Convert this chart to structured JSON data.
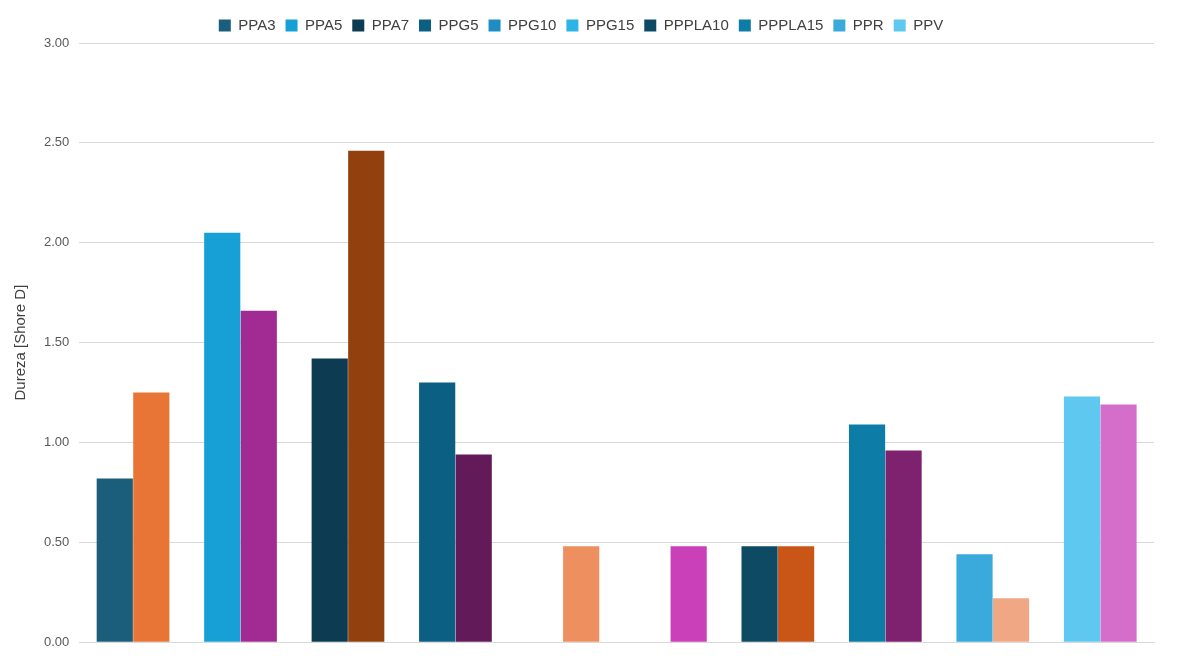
{
  "chart_data": {
    "type": "bar",
    "ylabel": "Dureza [Shore D]",
    "categories": [
      null,
      null,
      null,
      null,
      null,
      null,
      null,
      null,
      null,
      null
    ],
    "series": [
      {
        "name": "PPA3",
        "color": "#1b5e7b",
        "values": [
          0.82,
          null,
          null,
          null,
          null,
          null,
          null,
          null,
          null,
          null
        ]
      },
      {
        "name": "PPA5",
        "color": "#16a0d6",
        "values": [
          null,
          2.05,
          null,
          null,
          null,
          null,
          null,
          null,
          null,
          null
        ]
      },
      {
        "name": "PPA7",
        "color": "#0d3b52",
        "values": [
          null,
          null,
          1.42,
          null,
          null,
          null,
          null,
          null,
          null,
          null
        ]
      },
      {
        "name": "PPG5",
        "color": "#0a5f82",
        "values": [
          null,
          null,
          null,
          1.3,
          null,
          null,
          null,
          null,
          null,
          null
        ]
      },
      {
        "name": "PPG10",
        "color": "#1e8dc4",
        "values": [
          null,
          null,
          null,
          null,
          0,
          null,
          null,
          null,
          null,
          null
        ]
      },
      {
        "name": "PPG15",
        "color": "#2cb4e6",
        "values": [
          null,
          null,
          null,
          null,
          null,
          0,
          null,
          null,
          null,
          null
        ]
      },
      {
        "name": "PPPLA10",
        "color": "#0f4a64",
        "values": [
          null,
          null,
          null,
          null,
          null,
          null,
          0.48,
          null,
          null,
          null
        ]
      },
      {
        "name": "PPPLA15",
        "color": "#0d7ca7",
        "values": [
          null,
          null,
          null,
          null,
          null,
          null,
          null,
          1.09,
          null,
          null
        ]
      },
      {
        "name": "PPR",
        "color": "#3aa9dc",
        "values": [
          null,
          null,
          null,
          null,
          null,
          null,
          null,
          null,
          0.44,
          null
        ]
      },
      {
        "name": "PPV",
        "color": "#5fc8f0",
        "values": [
          null,
          null,
          null,
          null,
          null,
          null,
          null,
          null,
          null,
          1.23
        ]
      },
      {
        "colors": [
          "#e87435",
          "#a12b92",
          "#92400e",
          "#621b58",
          "#ee8f60",
          "#c940b8",
          "#c95517",
          "#7e2270",
          "#f0a884",
          "#d56ecb"
        ],
        "values": [
          1.25,
          1.66,
          2.46,
          0.94,
          0.48,
          0.48,
          0.48,
          0.96,
          0.22,
          1.19
        ]
      }
    ],
    "ylim": [
      0,
      3
    ],
    "yticks": [
      {
        "value": 0,
        "label": "0.00"
      },
      {
        "value": 0.5,
        "label": "0.50"
      },
      {
        "value": 1,
        "label": "1.00"
      },
      {
        "value": 1.5,
        "label": "1.50"
      },
      {
        "value": 2,
        "label": "2.00"
      },
      {
        "value": 2.5,
        "label": "2.50"
      },
      {
        "value": 3,
        "label": "3.00"
      }
    ],
    "grid": "y",
    "legend": "top",
    "tick_labels": "y"
  }
}
